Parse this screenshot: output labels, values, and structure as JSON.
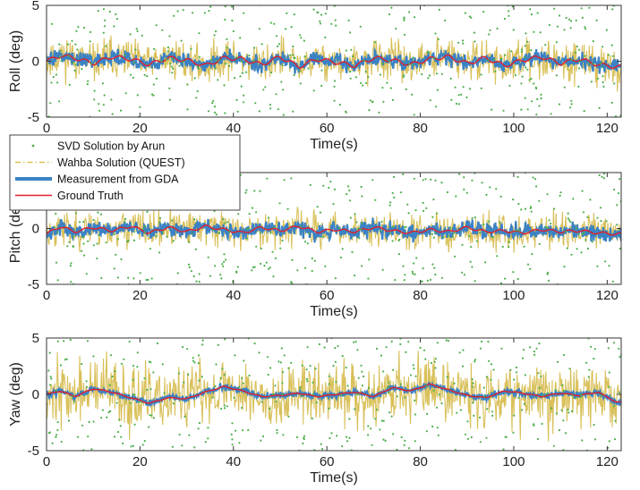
{
  "chart_data": [
    {
      "type": "line",
      "name": "roll",
      "xlabel": "Time(s)",
      "ylabel": "Roll (deg)",
      "xlim": [
        0,
        123
      ],
      "ylim": [
        -5,
        5
      ],
      "xticks": [
        "0",
        "20",
        "40",
        "60",
        "80",
        "100",
        "120"
      ],
      "yticks": [
        "5",
        "0",
        "-5"
      ],
      "noise": {
        "svd": 4.2,
        "wahba": 2.2,
        "gda": 0.9,
        "truth_amp": 0.45,
        "seed": 11
      },
      "truth_points": [
        [
          0,
          0.0
        ],
        [
          3,
          0.5
        ],
        [
          6,
          0.3
        ],
        [
          10,
          -0.2
        ],
        [
          14,
          0.4
        ],
        [
          18,
          0.2
        ],
        [
          22,
          -0.3
        ],
        [
          26,
          0.3
        ],
        [
          30,
          0.1
        ],
        [
          34,
          -0.4
        ],
        [
          38,
          0.3
        ],
        [
          42,
          0.2
        ],
        [
          46,
          -0.3
        ],
        [
          50,
          0.4
        ],
        [
          54,
          -0.5
        ],
        [
          58,
          0.2
        ],
        [
          62,
          -0.1
        ],
        [
          66,
          -0.4
        ],
        [
          70,
          0.3
        ],
        [
          74,
          0.1
        ],
        [
          78,
          -0.3
        ],
        [
          82,
          0.2
        ],
        [
          86,
          0.4
        ],
        [
          90,
          -0.2
        ],
        [
          94,
          0.3
        ],
        [
          98,
          -0.4
        ],
        [
          102,
          0.1
        ],
        [
          106,
          0.4
        ],
        [
          110,
          -0.2
        ],
        [
          114,
          0.2
        ],
        [
          118,
          -0.3
        ],
        [
          122,
          -0.5
        ]
      ]
    },
    {
      "type": "line",
      "name": "pitch",
      "xlabel": "Time(s)",
      "ylabel": "Pitch (deg)",
      "xlim": [
        0,
        123
      ],
      "ylim": [
        -5,
        5
      ],
      "xticks": [
        "0",
        "20",
        "40",
        "60",
        "80",
        "100",
        "120"
      ],
      "yticks": [
        "5",
        "0",
        "-5"
      ],
      "noise": {
        "svd": 4.2,
        "wahba": 2.0,
        "gda": 1.0,
        "truth_amp": 0.3,
        "seed": 23
      },
      "truth_points": [
        [
          0,
          -0.5
        ],
        [
          3,
          0.2
        ],
        [
          6,
          -0.3
        ],
        [
          10,
          0.1
        ],
        [
          14,
          -0.2
        ],
        [
          18,
          0.2
        ],
        [
          22,
          -0.4
        ],
        [
          26,
          0.1
        ],
        [
          30,
          -0.3
        ],
        [
          34,
          0.2
        ],
        [
          38,
          -0.1
        ],
        [
          42,
          -0.4
        ],
        [
          46,
          0.1
        ],
        [
          50,
          -0.2
        ],
        [
          54,
          0.2
        ],
        [
          58,
          -0.3
        ],
        [
          62,
          -0.1
        ],
        [
          66,
          -0.3
        ],
        [
          70,
          0.1
        ],
        [
          74,
          -0.2
        ],
        [
          78,
          -0.4
        ],
        [
          82,
          -0.1
        ],
        [
          86,
          -0.3
        ],
        [
          90,
          0.1
        ],
        [
          94,
          -0.3
        ],
        [
          98,
          -0.2
        ],
        [
          102,
          -0.4
        ],
        [
          106,
          -0.1
        ],
        [
          110,
          -0.3
        ],
        [
          114,
          -0.2
        ],
        [
          118,
          -0.4
        ],
        [
          122,
          -0.5
        ]
      ]
    },
    {
      "type": "line",
      "name": "yaw",
      "xlabel": "Time(s)",
      "ylabel": "Yaw (deg)",
      "xlim": [
        0,
        123
      ],
      "ylim": [
        -5,
        5
      ],
      "xticks": [
        "0",
        "20",
        "40",
        "60",
        "80",
        "100",
        "120"
      ],
      "yticks": [
        "5",
        "0",
        "-5"
      ],
      "noise": {
        "svd": 4.4,
        "wahba": 3.6,
        "gda": 0.4,
        "truth_amp": 0.1,
        "seed": 37
      },
      "truth_points": [
        [
          0,
          0.0
        ],
        [
          3,
          0.3
        ],
        [
          6,
          -0.2
        ],
        [
          10,
          0.5
        ],
        [
          14,
          0.2
        ],
        [
          18,
          -0.3
        ],
        [
          22,
          -0.8
        ],
        [
          26,
          -0.3
        ],
        [
          30,
          -0.4
        ],
        [
          34,
          0.2
        ],
        [
          38,
          0.7
        ],
        [
          42,
          0.3
        ],
        [
          46,
          -0.2
        ],
        [
          50,
          -0.1
        ],
        [
          54,
          0.1
        ],
        [
          58,
          -0.2
        ],
        [
          62,
          0.0
        ],
        [
          66,
          0.2
        ],
        [
          70,
          -0.2
        ],
        [
          74,
          0.6
        ],
        [
          78,
          0.3
        ],
        [
          82,
          0.9
        ],
        [
          86,
          0.4
        ],
        [
          90,
          -0.1
        ],
        [
          94,
          -0.3
        ],
        [
          98,
          0.3
        ],
        [
          102,
          0.1
        ],
        [
          106,
          -0.2
        ],
        [
          110,
          0.1
        ],
        [
          114,
          -0.1
        ],
        [
          118,
          0.2
        ],
        [
          122,
          -0.7
        ]
      ]
    }
  ],
  "legend": {
    "items": [
      {
        "label": "SVD Solution by Arun",
        "color": "#4daf4a",
        "style": "dots"
      },
      {
        "label": "Wahba Solution (QUEST)",
        "color": "#d9c05a",
        "style": "dashdot"
      },
      {
        "label": "Measurement from GDA",
        "color": "#3b82c4",
        "style": "thick"
      },
      {
        "label": "Ground Truth",
        "color": "#e0202a",
        "style": "line"
      }
    ]
  }
}
